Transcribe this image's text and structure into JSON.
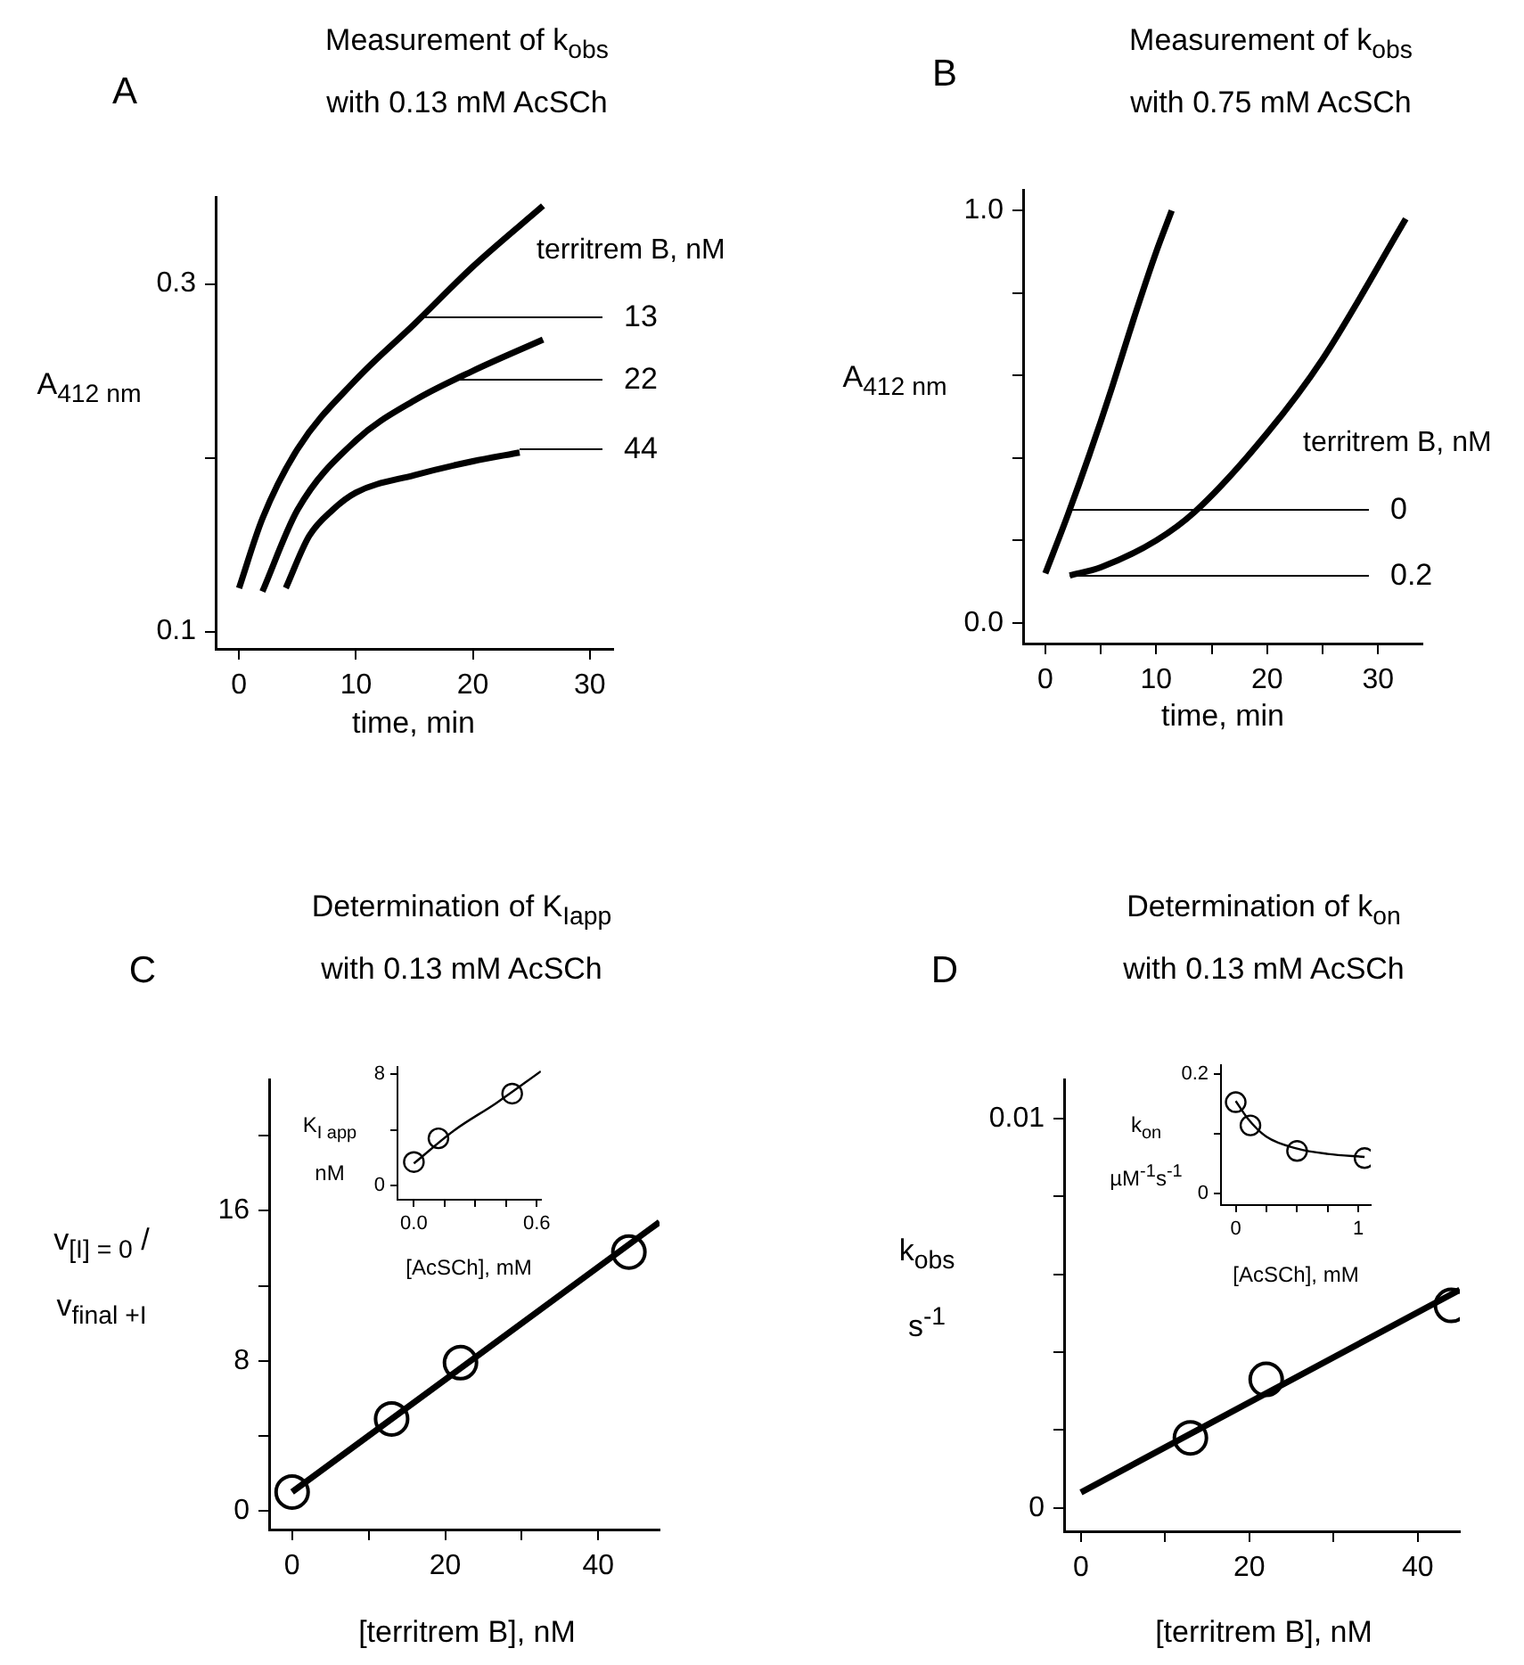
{
  "chart_data": [
    {
      "type": "line",
      "title": "Measurement of k$_{obs}$\nwith 0.13 mM AcSCh",
      "xlabel": "time, min",
      "ylabel": "A$_{412 nm}$",
      "legend": "right",
      "legend_title": "territrem B, nM",
      "xlim": [
        -2,
        32
      ],
      "xticks": [
        0,
        10,
        20,
        30
      ],
      "ylim": [
        0.09,
        0.35
      ],
      "yticks": [
        0.1,
        {
          "value": 0.2,
          "label": null
        },
        0.3
      ],
      "series": [
        {
          "name": "13",
          "color": "#000000",
          "x": [
            0,
            2,
            5,
            10,
            15,
            20,
            26
          ],
          "values": [
            0.125,
            0.165,
            0.205,
            0.245,
            0.277,
            0.31,
            0.345
          ]
        },
        {
          "name": "22",
          "color": "#000000",
          "x": [
            2,
            5,
            10,
            15,
            20,
            26
          ],
          "values": [
            0.123,
            0.17,
            0.21,
            0.233,
            0.25,
            0.268
          ]
        },
        {
          "name": "44",
          "color": "#000000",
          "x": [
            4,
            6,
            8,
            10,
            15,
            20,
            24
          ],
          "values": [
            0.125,
            0.155,
            0.17,
            0.18,
            0.19,
            0.198,
            0.203
          ]
        }
      ],
      "annotations": [
        "A"
      ]
    },
    {
      "type": "line",
      "title": "Measurement of k$_{obs}$\nwith 0.75 mM AcSCh",
      "xlabel": "time, min",
      "ylabel": "A$_{412 nm}$",
      "legend": "right",
      "legend_title": "territrem B, nM",
      "xlim": [
        -2,
        34
      ],
      "xticks": [
        0,
        {
          "value": 5,
          "label": null
        },
        10,
        {
          "value": 15,
          "label": null
        },
        20,
        {
          "value": 25,
          "label": null
        },
        30
      ],
      "ylim": [
        -0.05,
        1.05
      ],
      "yticks": [
        {
          "value": 0,
          "label": "0.0"
        },
        {
          "value": 0.2,
          "label": null
        },
        {
          "value": 0.4,
          "label": null
        },
        {
          "value": 0.6,
          "label": null
        },
        {
          "value": 0.8,
          "label": null
        },
        {
          "value": 1,
          "label": "1.0"
        }
      ],
      "series": [
        {
          "name": "0",
          "color": "#000000",
          "x": [
            0,
            2,
            4,
            6,
            8,
            10,
            11.4
          ],
          "values": [
            0.12,
            0.26,
            0.41,
            0.57,
            0.74,
            0.9,
            1.0
          ]
        },
        {
          "name": "0.2",
          "color": "#000000",
          "x": [
            2.2,
            5,
            10,
            13.5,
            20,
            25,
            32.5
          ],
          "values": [
            0.115,
            0.135,
            0.2,
            0.27,
            0.46,
            0.64,
            0.98
          ]
        }
      ],
      "annotations": [
        "B"
      ]
    },
    {
      "type": "scatter",
      "title": "Determination of K$_{Iapp}$\nwith 0.13 mM AcSCh",
      "xlabel": "[territrem B], nM",
      "ylabel": "v$_{[I] = 0}$ / v$_{final  +I}$",
      "xlim": [
        -3,
        48
      ],
      "xticks": [
        0,
        {
          "value": 10,
          "label": null
        },
        20,
        {
          "value": 30,
          "label": null
        },
        40
      ],
      "ylim": [
        -1,
        23
      ],
      "yticks": [
        0,
        {
          "value": 4,
          "label": null
        },
        8,
        {
          "value": 12,
          "label": null
        },
        16,
        {
          "value": 20,
          "label": null
        }
      ],
      "series": [
        {
          "marker": "circle",
          "color": "#000000",
          "x": [
            0,
            13,
            22,
            44
          ],
          "values": [
            1,
            4.9,
            7.9,
            13.8
          ]
        },
        {
          "type": "line",
          "color": "#000000",
          "x": [
            0,
            48
          ],
          "values": [
            1,
            15.4
          ]
        }
      ],
      "annotations": [
        "C"
      ]
    },
    {
      "type": "scatter",
      "xlabel": "[AcSCh], mM",
      "ylabel": "K$_{I app}$\nnM",
      "xlim": [
        -0.08,
        0.62
      ],
      "xticks": [
        {
          "value": 0,
          "label": "0.0"
        },
        {
          "value": 0.15,
          "label": null
        },
        {
          "value": 0.3,
          "label": null
        },
        {
          "value": 0.45,
          "label": null
        },
        0.6
      ],
      "ylim": [
        -1,
        8.5
      ],
      "yticks": [
        0,
        {
          "value": 4,
          "label": null
        },
        8
      ],
      "series": [
        {
          "marker": "circle",
          "color": "#000000",
          "x": [
            0,
            0.12,
            0.48
          ],
          "values": [
            1.7,
            3.4,
            6.6
          ]
        },
        {
          "type": "line",
          "color": "#000000",
          "x": [
            0,
            0.2,
            0.4,
            0.62
          ],
          "values": [
            1.6,
            4.0,
            5.9,
            8.2
          ]
        }
      ]
    },
    {
      "type": "scatter",
      "title": "Determination of k$_{on}$\nwith 0.13 mM AcSCh",
      "xlabel": "[territrem B], nM",
      "ylabel": "k$_{obs}$\ns$^{-1}$",
      "xlim": [
        -2,
        45
      ],
      "xticks": [
        0,
        {
          "value": 10,
          "label": null
        },
        20,
        {
          "value": 30,
          "label": null
        },
        40
      ],
      "ylim": [
        -0.0006,
        0.011
      ],
      "yticks": [
        0,
        {
          "value": 0.002,
          "label": null
        },
        {
          "value": 0.004,
          "label": null
        },
        {
          "value": 0.006,
          "label": null
        },
        {
          "value": 0.008,
          "label": null
        },
        0.01
      ],
      "series": [
        {
          "marker": "circle",
          "color": "#000000",
          "x": [
            13,
            22,
            44
          ],
          "values": [
            0.0018,
            0.0033,
            0.0052
          ]
        },
        {
          "type": "line",
          "color": "#000000",
          "x": [
            0,
            45
          ],
          "values": [
            0.0004,
            0.0056
          ]
        }
      ],
      "annotations": [
        "D"
      ]
    },
    {
      "type": "scatter",
      "xlabel": "[AcSCh], mM",
      "ylabel": "k$_{on}$\nµM$^{-1}$s$^{-1}$",
      "xlim": [
        -0.12,
        1.1
      ],
      "xticks": [
        0,
        {
          "value": 0.25,
          "label": null
        },
        {
          "value": 0.5,
          "label": null
        },
        {
          "value": 0.75,
          "label": null
        },
        1
      ],
      "ylim": [
        -0.02,
        0.215
      ],
      "yticks": [
        0,
        {
          "value": 0.1,
          "label": null
        },
        0.2
      ],
      "series": [
        {
          "marker": "circle",
          "color": "#000000",
          "x": [
            0,
            0.12,
            0.5,
            1.05
          ],
          "values": [
            0.153,
            0.114,
            0.071,
            0.059
          ]
        },
        {
          "type": "line",
          "color": "#000000",
          "x": [
            0,
            0.1,
            0.25,
            0.5,
            0.75,
            1.05
          ],
          "values": [
            0.155,
            0.125,
            0.095,
            0.075,
            0.066,
            0.061
          ]
        }
      ]
    }
  ]
}
